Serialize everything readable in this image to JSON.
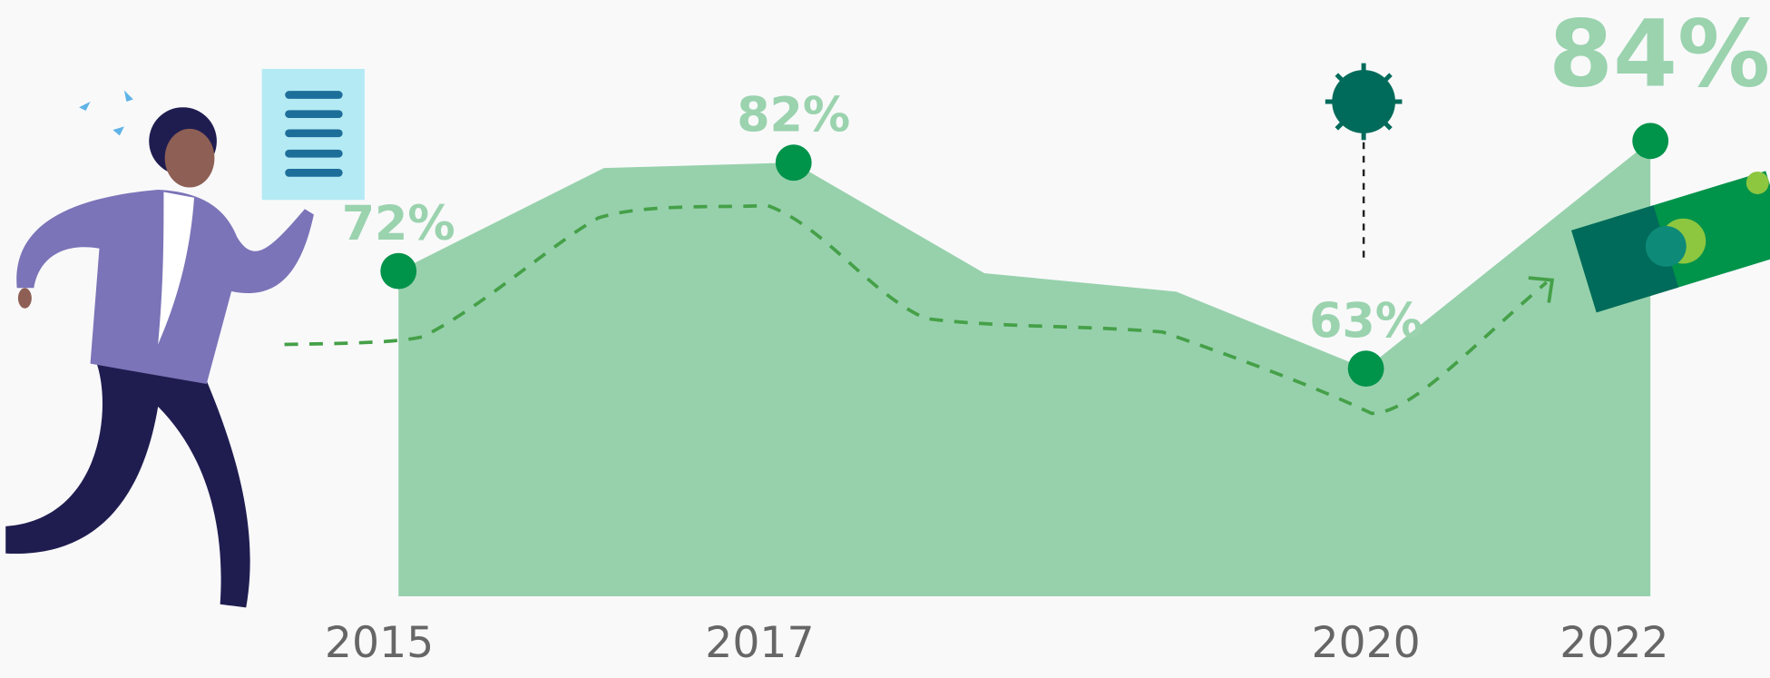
{
  "chart_data": {
    "type": "area",
    "categories": [
      "2015",
      null,
      "2017",
      null,
      null,
      "2020",
      "2022"
    ],
    "values": [
      72,
      81.5,
      82,
      71.8,
      70.1,
      63,
      84
    ],
    "value_labels": [
      "72%",
      null,
      "82%",
      null,
      null,
      "63%",
      "84%"
    ],
    "ylim": [
      42,
      86
    ],
    "color": "#97d1ac",
    "point_color": "#00934a",
    "label_color": "#9ad3ae"
  }
}
